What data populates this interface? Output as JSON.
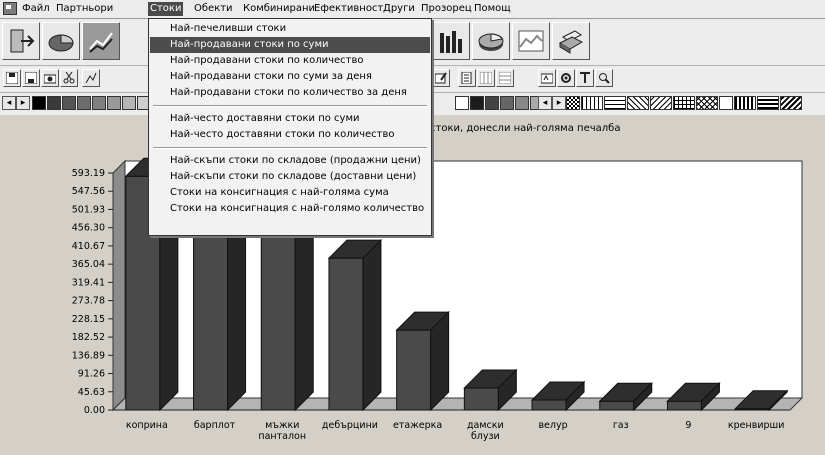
{
  "menubar": {
    "items": [
      "Файл",
      "Партньори",
      "Стоки",
      "Обекти",
      "Комбинирани",
      "Ефективност",
      "Други",
      "Прозорец",
      "Помощ"
    ],
    "active_index": 2
  },
  "dropdown": {
    "items": [
      "Най-печеливши стоки",
      "Най-продавани стоки по суми",
      "Най-продавани стоки по количество",
      "Най-продавани стоки по суми за деня",
      "Най-продавани стоки по количество за деня",
      "Най-често доставяни стоки по суми",
      "Най-често доставяни стоки по количество",
      "Най-скъпи стоки по складове (продажни цени)",
      "Най-скъпи стоки по складове (доставни цени)",
      "Стоки на консигнация с най-голяма сума",
      "Стоки на консигнация с най-голямо количество"
    ],
    "highlighted_index": 1
  },
  "chart_data": {
    "type": "bar",
    "title": "стоки, донесли най-голяма печалба",
    "categories": [
      "коприна",
      "барплот",
      "мъжки\nпанталон",
      "дебърцини",
      "етажерка",
      "дамски\nблузи",
      "велур",
      "газ",
      "9",
      "кренвирши"
    ],
    "values": [
      585,
      555,
      440,
      380,
      200,
      55,
      25,
      22,
      22,
      3
    ],
    "ylim": [
      0,
      593.19
    ],
    "yticks": [
      "593.19",
      "547.56",
      "501.93",
      "456.30",
      "410.67",
      "365.04",
      "319.41",
      "273.78",
      "228.15",
      "182.52",
      "136.89",
      "91.26",
      "45.63",
      "0.00"
    ],
    "bar_color": "#4a4a4a",
    "bar_top_color": "#2e2e2e",
    "bar_side_color": "#262626"
  },
  "colors": {
    "menu_highlight": "#4c4c4c",
    "swatches": [
      "#000000",
      "#3a3a3a",
      "#555555",
      "#6d6d6d",
      "#808080",
      "#999999",
      "#b5b5b5",
      "#cfcfcf",
      "#ffffff",
      "#1c1c1c",
      "#444444",
      "#666666",
      "#888888",
      "#aaaaaa",
      "#cccccc",
      "#eeeeee"
    ]
  },
  "toolbar": {
    "icons": [
      "exit-icon",
      "pie-chart-icon",
      "line-chart-icon",
      "bar-chart-icon",
      "3d-pie-icon",
      "area-chart-icon",
      "print-icon"
    ]
  }
}
